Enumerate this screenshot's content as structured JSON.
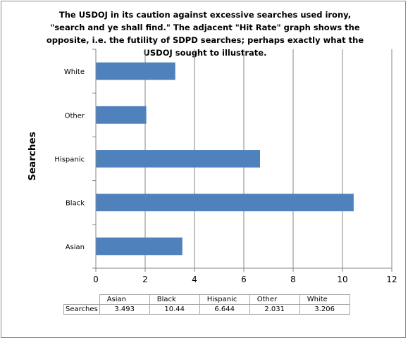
{
  "chart_data": {
    "type": "bar",
    "orientation": "horizontal",
    "title": "The USDOJ in its caution against excessive searches used irony, \"search and ye shall find.\" The adjacent \"Hit Rate\" graph shows the opposite, i.e. the futility of SDPD searches; perhaps exactly what the USDOJ sought to illustrate.",
    "ylabel": "Searches",
    "xlabel": "",
    "categories": [
      "Asian",
      "Black",
      "Hispanic",
      "Other",
      "White"
    ],
    "series": [
      {
        "name": "Searches",
        "values": [
          3.493,
          10.44,
          6.644,
          2.031,
          3.206
        ],
        "value_labels": [
          "3.493",
          "10.44",
          "6.644",
          "2.031",
          "3.206"
        ],
        "color": "#4f81bd"
      }
    ],
    "xlim": [
      0,
      12
    ],
    "xticks": [
      0,
      2,
      4,
      6,
      8,
      10,
      12
    ],
    "grid": "vertical",
    "legend": "none",
    "data_table": true
  }
}
